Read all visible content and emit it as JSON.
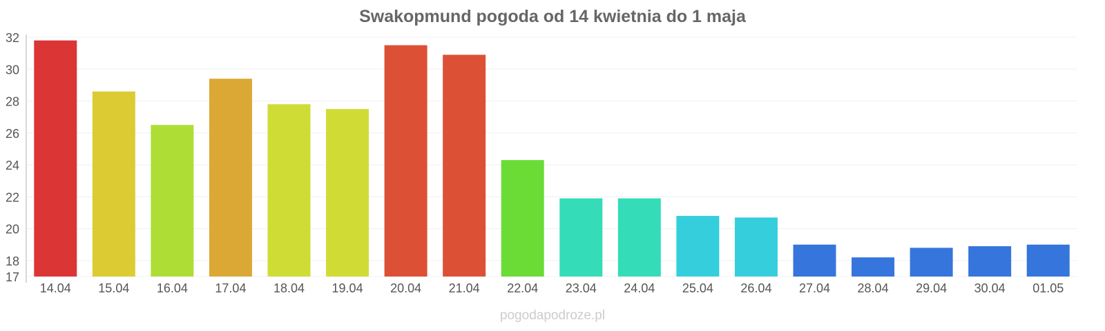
{
  "chart_data": {
    "type": "bar",
    "title": "Swakopmund pogoda od 14 kwietnia do 1 maja",
    "xlabel": "",
    "ylabel": "",
    "ylim": [
      17,
      32
    ],
    "yticks": [
      17,
      18,
      20,
      22,
      24,
      26,
      28,
      30,
      32
    ],
    "grid": true,
    "categories": [
      "14.04",
      "15.04",
      "16.04",
      "17.04",
      "18.04",
      "19.04",
      "20.04",
      "21.04",
      "22.04",
      "23.04",
      "24.04",
      "25.04",
      "26.04",
      "27.04",
      "28.04",
      "29.04",
      "30.04",
      "01.05"
    ],
    "values": [
      31.8,
      28.6,
      26.5,
      29.4,
      27.8,
      27.5,
      31.5,
      30.9,
      24.3,
      21.9,
      21.9,
      20.8,
      20.7,
      19.0,
      18.2,
      18.8,
      18.9,
      19.0
    ],
    "colors": [
      "#dc3535",
      "#dccb33",
      "#aede35",
      "#dca835",
      "#cfdc35",
      "#d0dc35",
      "#dc5035",
      "#dc5035",
      "#6adc35",
      "#35dcb8",
      "#35dcb8",
      "#35cedc",
      "#35cedc",
      "#3575dc",
      "#3575dc",
      "#3575dc",
      "#3575dc",
      "#3575dc"
    ]
  },
  "watermark": "pogodapodroze.pl"
}
